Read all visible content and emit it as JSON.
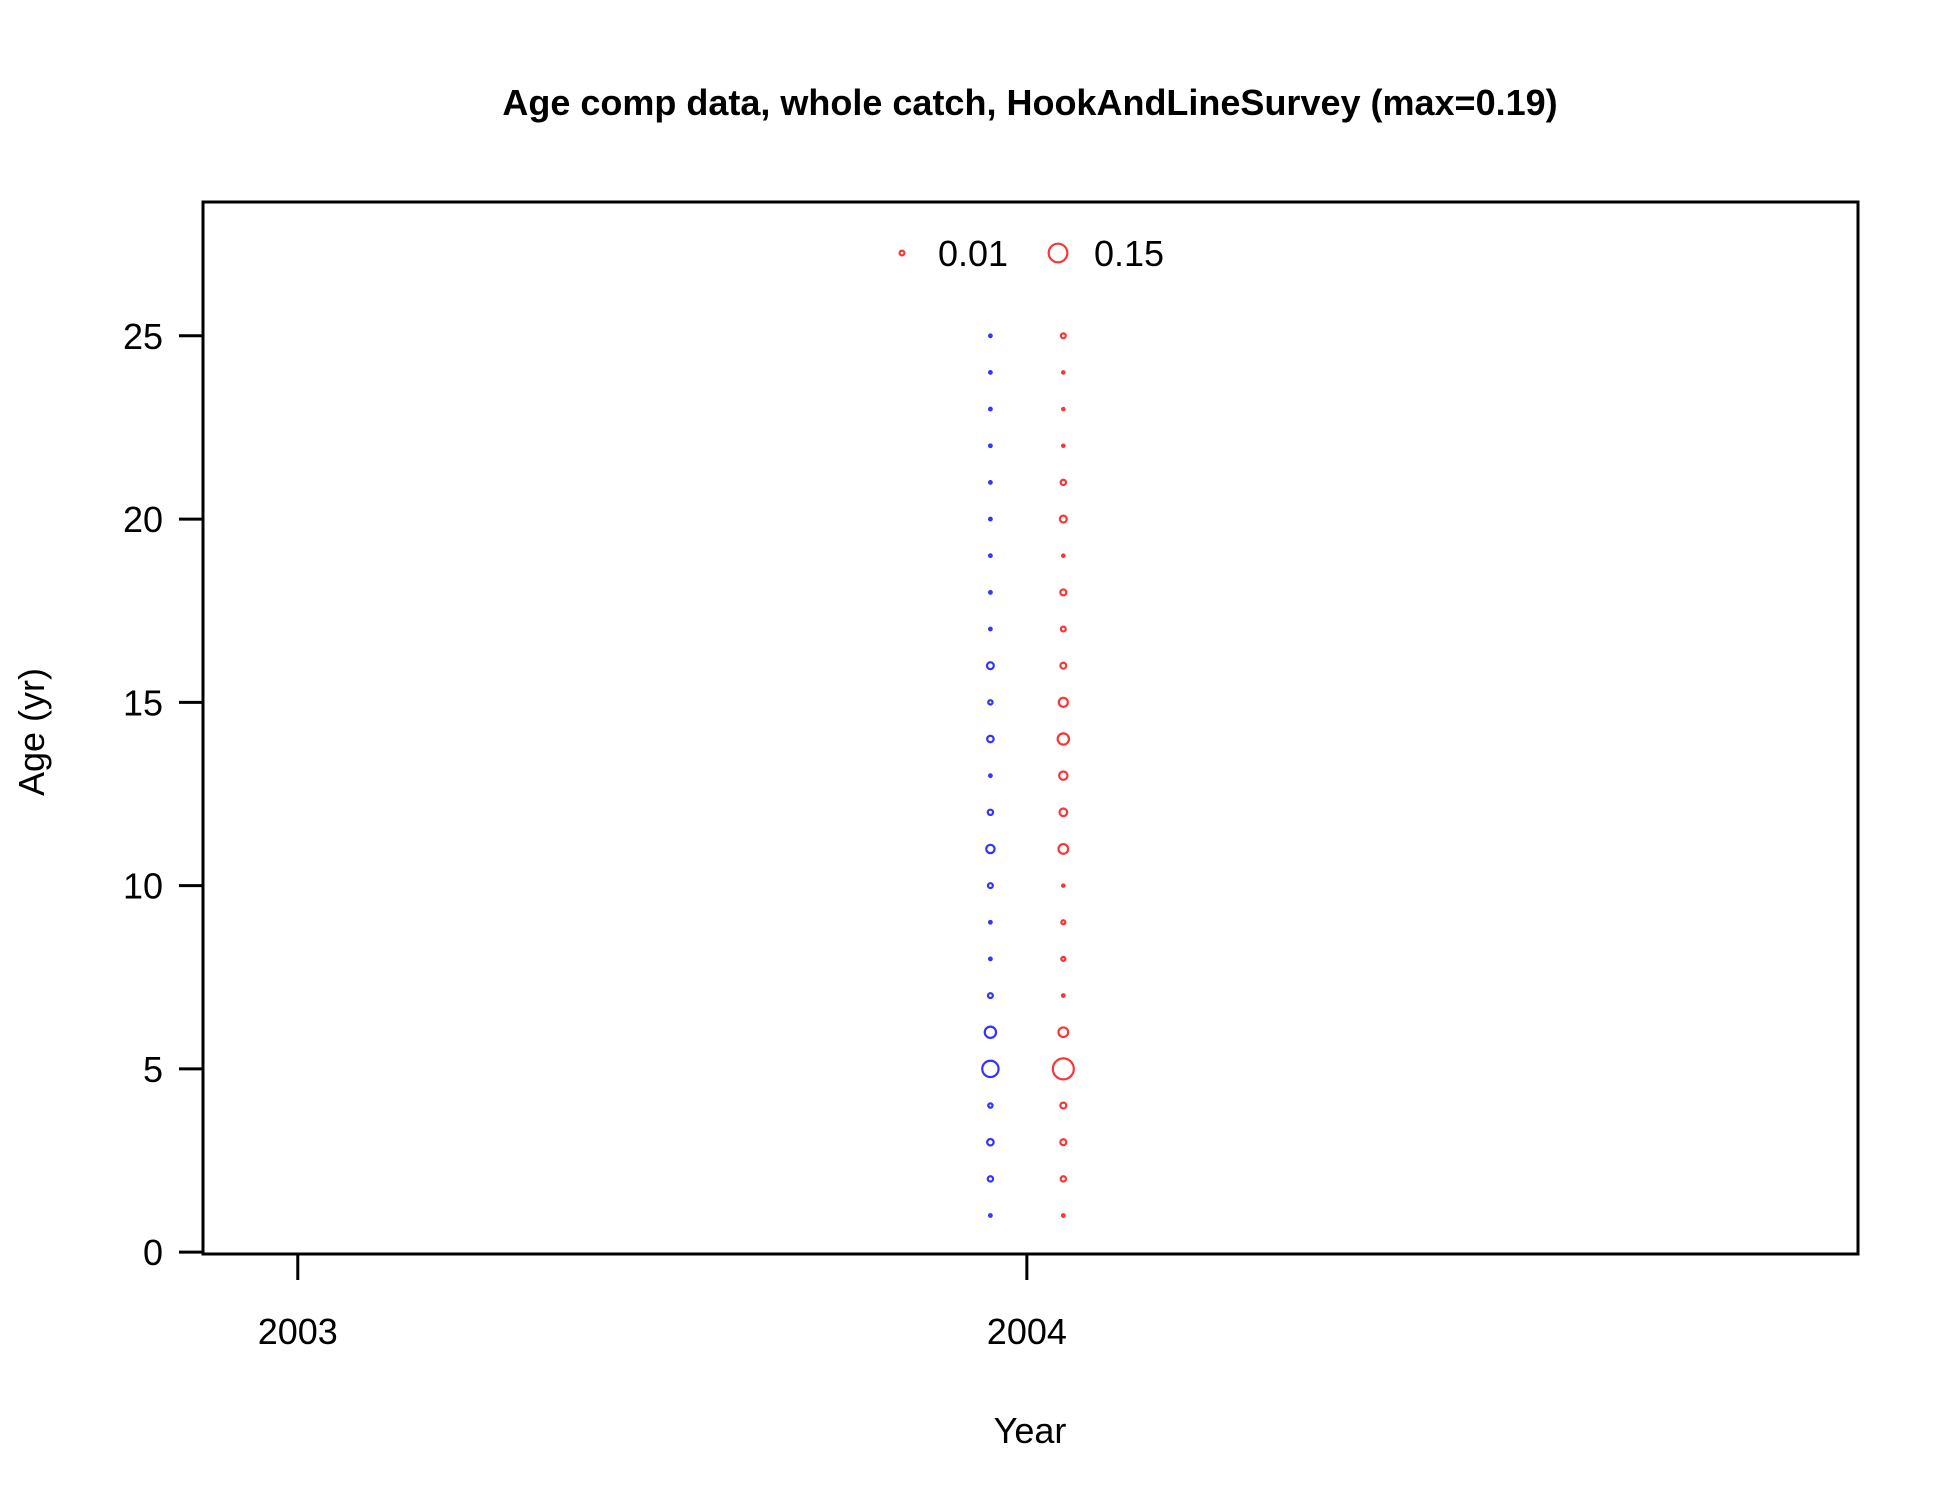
{
  "chart_data": {
    "type": "scatter",
    "title": "Age comp data, whole catch, HookAndLineSurvey (max=0.19)",
    "xlabel": "Year",
    "ylabel": "Age (yr)",
    "xlim": [
      2002.87,
      2005.14
    ],
    "ylim": [
      -0.05,
      28.65
    ],
    "x_ticks": [
      2003,
      2004
    ],
    "x_tick_labels": [
      "2003",
      "2004"
    ],
    "y_ticks": [
      0,
      5,
      10,
      15,
      20,
      25
    ],
    "y_tick_labels": [
      "0",
      "5",
      "10",
      "15",
      "20",
      "25"
    ],
    "grid": false,
    "legend": {
      "placement": "top-center",
      "entries": [
        {
          "label": "0.01",
          "value": 0.01
        },
        {
          "label": "0.15",
          "value": 0.15
        }
      ],
      "color": "#ff3333"
    },
    "max_value": 0.19,
    "series": [
      {
        "color": "#3333ff",
        "x": 2003.95,
        "ages": [
          1,
          2,
          3,
          4,
          5,
          6,
          7,
          8,
          9,
          10,
          11,
          12,
          13,
          14,
          15,
          16,
          17,
          18,
          19,
          20,
          21,
          22,
          23,
          24,
          25
        ],
        "values": [
          0.003,
          0.012,
          0.018,
          0.008,
          0.115,
          0.055,
          0.01,
          0.003,
          0.003,
          0.01,
          0.03,
          0.012,
          0.003,
          0.018,
          0.008,
          0.02,
          0.003,
          0.003,
          0.003,
          0.003,
          0.003,
          0.003,
          0.003,
          0.003,
          0.003
        ]
      },
      {
        "color": "#ff3333",
        "x": 2004.05,
        "ages": [
          1,
          2,
          3,
          4,
          5,
          6,
          7,
          8,
          9,
          10,
          11,
          12,
          13,
          14,
          15,
          16,
          17,
          18,
          19,
          20,
          21,
          22,
          23,
          24,
          25
        ],
        "values": [
          0.003,
          0.012,
          0.015,
          0.015,
          0.19,
          0.04,
          0.003,
          0.007,
          0.007,
          0.002,
          0.04,
          0.025,
          0.03,
          0.055,
          0.035,
          0.015,
          0.01,
          0.015,
          0.002,
          0.02,
          0.012,
          0.002,
          0.002,
          0.002,
          0.01
        ]
      }
    ]
  }
}
